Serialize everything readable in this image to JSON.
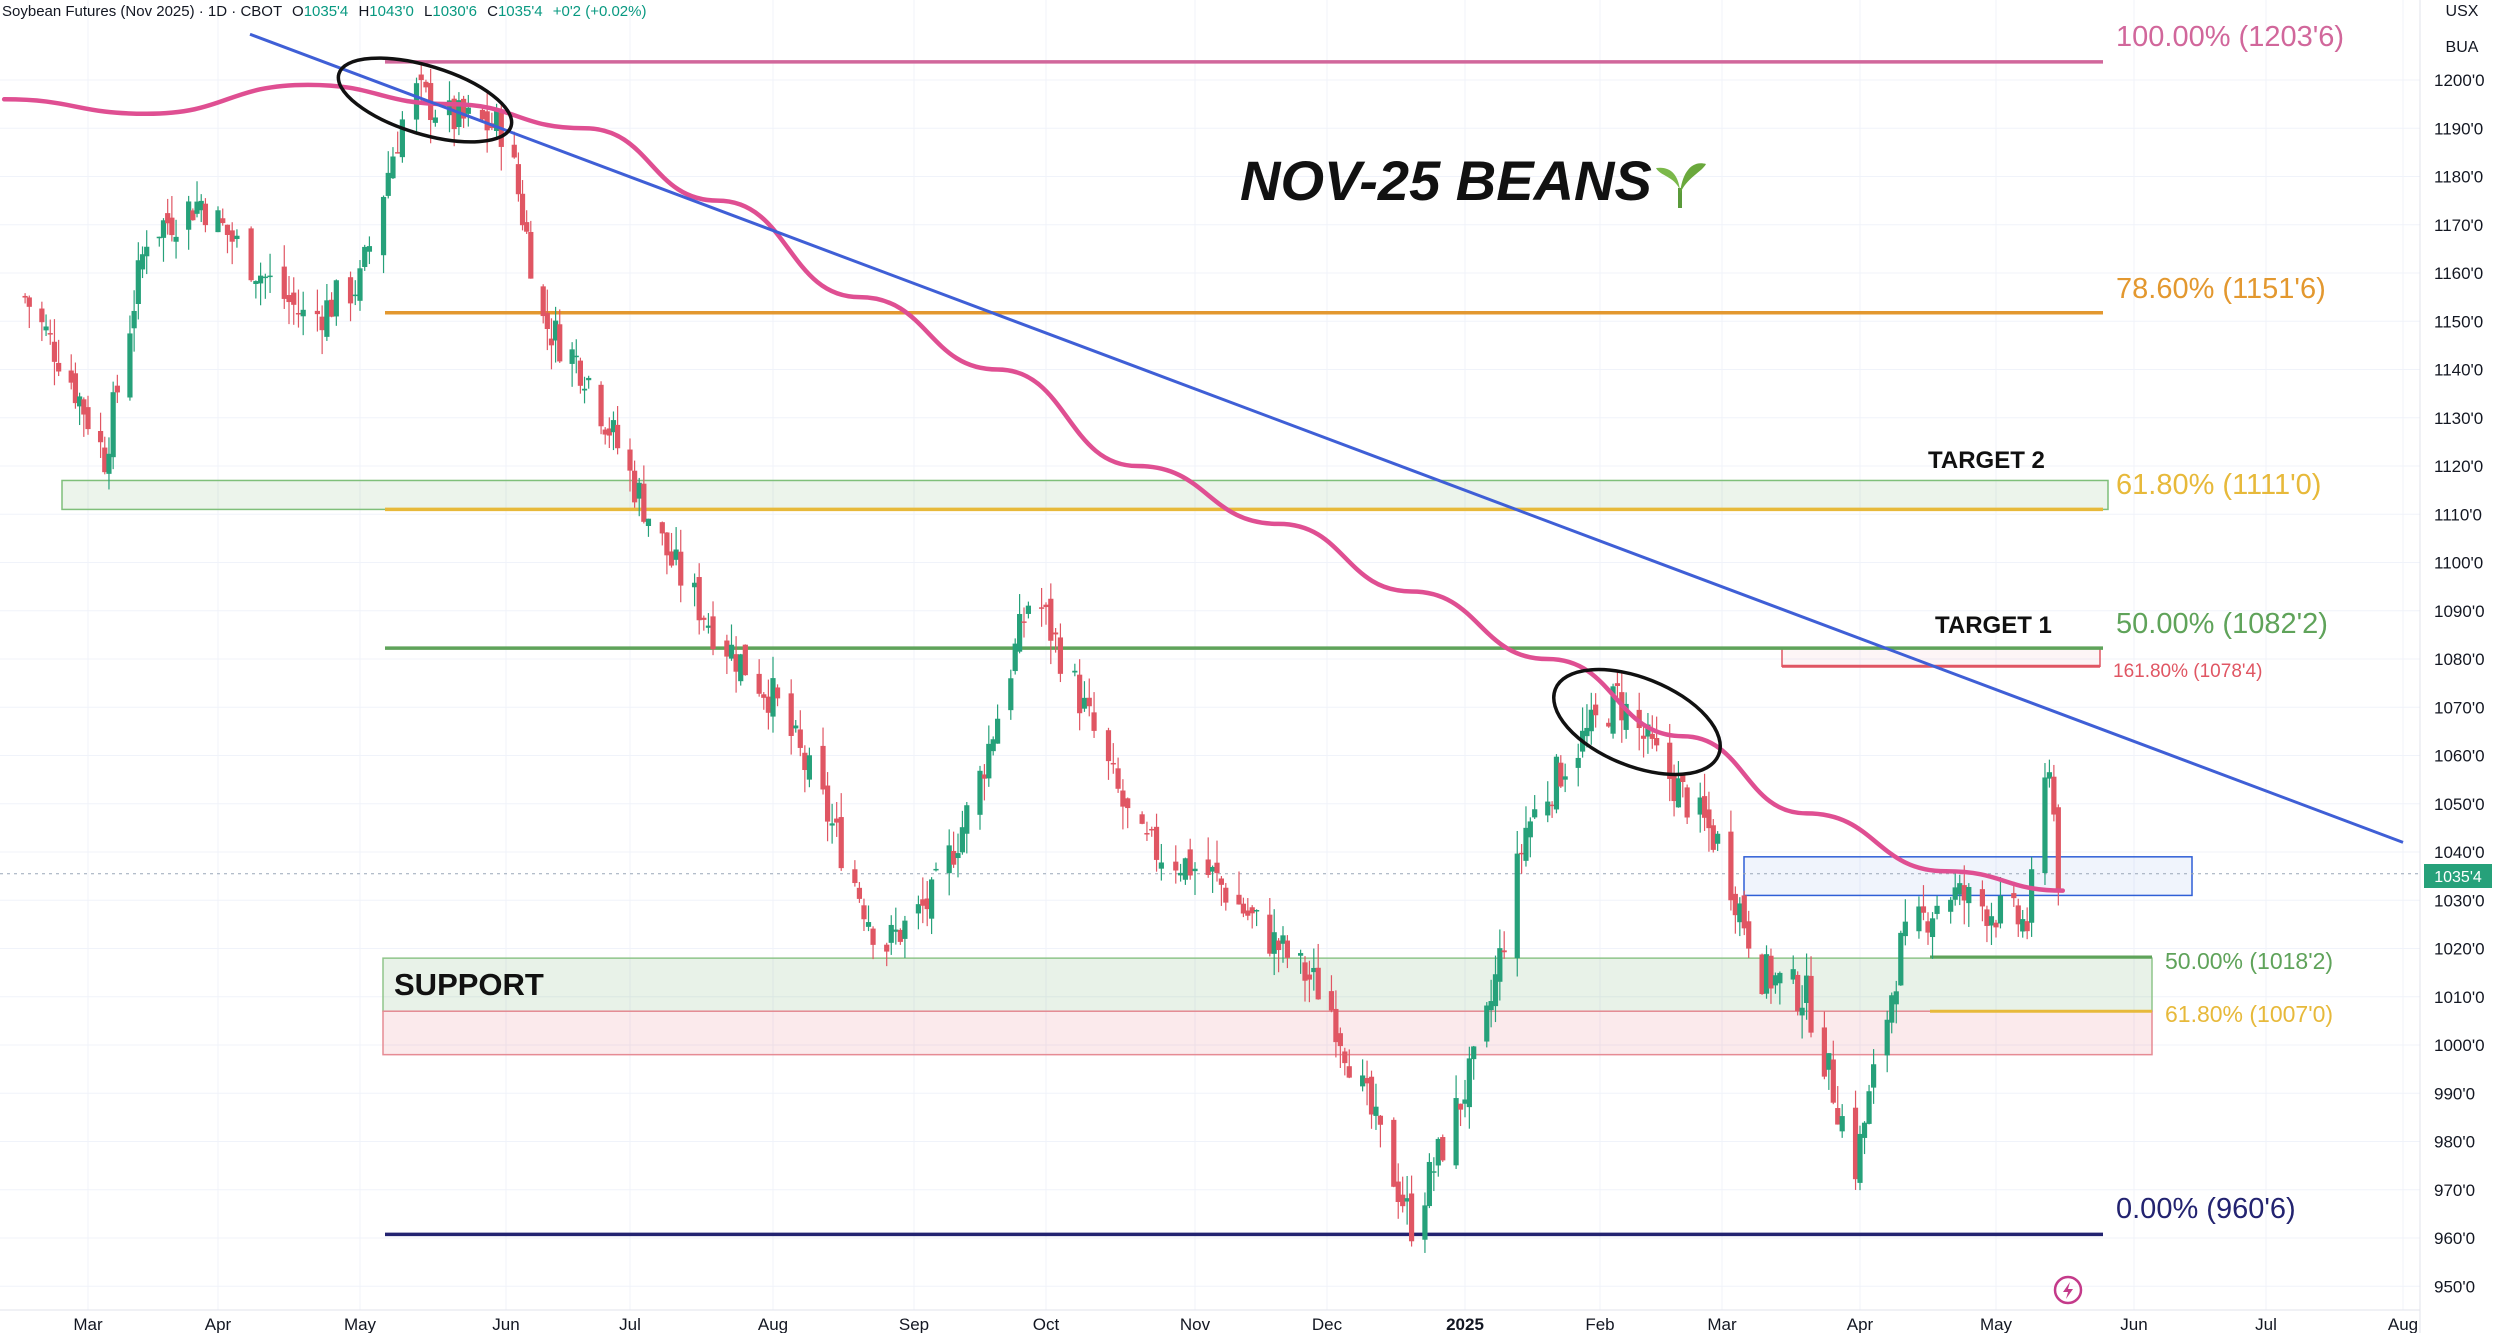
{
  "header": {
    "symbol_text": "Soybean Futures (Nov 2025) · 1D · CBOT",
    "open_label": "O",
    "open_value": "1035'4",
    "high_label": "H",
    "high_value": "1043'0",
    "low_label": "L",
    "low_value": "1030'6",
    "close_label": "C",
    "close_value": "1035'4",
    "change_value": "+0'2 (+0.02%)"
  },
  "price_axis": {
    "unit_line1": "USX",
    "unit_line2": "BUA",
    "last_price_label": "1035'4",
    "ticks": [
      "1200'0",
      "1190'0",
      "1180'0",
      "1170'0",
      "1160'0",
      "1150'0",
      "1140'0",
      "1130'0",
      "1120'0",
      "1110'0",
      "1100'0",
      "1090'0",
      "1080'0",
      "1070'0",
      "1060'0",
      "1050'0",
      "1040'0",
      "1030'0",
      "1020'0",
      "1010'0",
      "1000'0",
      "990'0",
      "980'0",
      "970'0",
      "960'0",
      "950'0"
    ]
  },
  "annotations": {
    "title": "NOV-25 BEANS",
    "title_icon": "seedling-icon",
    "target1": "TARGET 1",
    "target2": "TARGET 2",
    "support": "SUPPORT"
  },
  "fib_levels": {
    "f100": "100.00% (1203'6)",
    "f786": "78.60% (1151'6)",
    "f618": "61.80% (1111'0)",
    "f500": "50.00% (1082'2)",
    "f1618": "161.80% (1078'4)",
    "f000": "0.00% (960'6)",
    "sub500": "50.00% (1018'2)",
    "sub618": "61.80% (1007'0)"
  },
  "colors": {
    "up": "#26a17a",
    "down": "#e05663",
    "ma": "#df4f92",
    "trendline": "#3f5fd6",
    "fib100": "#d1679b",
    "fib786": "#e3982f",
    "fib618": "#e7b93a",
    "fib500": "#5fa35a",
    "fib000": "#232370",
    "target_red": "#e05663",
    "zone_blue": "#2f5fd6"
  },
  "chart_data": {
    "type": "candlestick",
    "title": "NOV-25 BEANS",
    "x_ticks": [
      "Mar",
      "Apr",
      "May",
      "Jun",
      "Jul",
      "Aug",
      "Sep",
      "Oct",
      "Nov",
      "Dec",
      "2025",
      "Feb",
      "Mar",
      "Apr",
      "May",
      "Jun",
      "Jul",
      "Aug"
    ],
    "y_range": [
      945,
      1208
    ],
    "last_price": 1035.5,
    "close_path": [
      [
        "2024-02-15",
        1155
      ],
      [
        "2024-02-25",
        1140
      ],
      [
        "2024-03-05",
        1122
      ],
      [
        "2024-03-15",
        1168
      ],
      [
        "2024-03-28",
        1175
      ],
      [
        "2024-04-10",
        1160
      ],
      [
        "2024-04-20",
        1150
      ],
      [
        "2024-05-01",
        1158
      ],
      [
        "2024-05-08",
        1185
      ],
      [
        "2024-05-12",
        1198
      ],
      [
        "2024-05-20",
        1192
      ],
      [
        "2024-06-01",
        1190
      ],
      [
        "2024-06-10",
        1150
      ],
      [
        "2024-06-20",
        1140
      ],
      [
        "2024-07-01",
        1118
      ],
      [
        "2024-07-10",
        1100
      ],
      [
        "2024-07-20",
        1085
      ],
      [
        "2024-08-01",
        1072
      ],
      [
        "2024-08-12",
        1050
      ],
      [
        "2024-08-25",
        1020
      ],
      [
        "2024-09-05",
        1030
      ],
      [
        "2024-09-15",
        1052
      ],
      [
        "2024-09-28",
        1095
      ],
      [
        "2024-10-08",
        1072
      ],
      [
        "2024-10-20",
        1042
      ],
      [
        "2024-11-05",
        1035
      ],
      [
        "2024-11-15",
        1025
      ],
      [
        "2024-12-01",
        1010
      ],
      [
        "2024-12-20",
        963
      ],
      [
        "2025-01-05",
        1000
      ],
      [
        "2025-01-15",
        1045
      ],
      [
        "2025-01-25",
        1060
      ],
      [
        "2025-02-05",
        1072
      ],
      [
        "2025-02-15",
        1058
      ],
      [
        "2025-02-28",
        1042
      ],
      [
        "2025-03-10",
        1015
      ],
      [
        "2025-03-20",
        1010
      ],
      [
        "2025-03-31",
        975
      ],
      [
        "2025-04-10",
        1020
      ],
      [
        "2025-04-20",
        1032
      ],
      [
        "2025-04-30",
        1028
      ],
      [
        "2025-05-08",
        1025
      ],
      [
        "2025-05-13",
        1060
      ],
      [
        "2025-05-15",
        1035
      ]
    ],
    "moving_average": [
      [
        "2024-02-10",
        1196
      ],
      [
        "2024-03-15",
        1193
      ],
      [
        "2024-04-20",
        1199
      ],
      [
        "2024-05-20",
        1195
      ],
      [
        "2024-06-20",
        1190
      ],
      [
        "2024-07-20",
        1175
      ],
      [
        "2024-08-20",
        1155
      ],
      [
        "2024-09-20",
        1140
      ],
      [
        "2024-10-20",
        1120
      ],
      [
        "2024-11-20",
        1108
      ],
      [
        "2024-12-20",
        1094
      ],
      [
        "2025-01-20",
        1080
      ],
      [
        "2025-02-20",
        1064
      ],
      [
        "2025-03-20",
        1048
      ],
      [
        "2025-04-20",
        1036
      ],
      [
        "2025-05-16",
        1032
      ]
    ],
    "trendline": [
      [
        "2024-05-01",
        1207
      ],
      [
        "2025-08-01",
        1042
      ]
    ],
    "fib_levels": [
      {
        "label": "100.00% (1203'6)",
        "value": 1203.75
      },
      {
        "label": "78.60% (1151'6)",
        "value": 1151.75
      },
      {
        "label": "61.80% (1111'0)",
        "value": 1111
      },
      {
        "label": "50.00% (1082'2)",
        "value": 1082.25
      },
      {
        "label": "161.80% (1078'4)",
        "value": 1078.5
      },
      {
        "label": "0.00% (960'6)",
        "value": 960.75
      }
    ],
    "secondary_fib_levels": [
      {
        "label": "50.00% (1018'2)",
        "value": 1018.25
      },
      {
        "label": "61.80% (1007'0)",
        "value": 1007
      }
    ],
    "zones": [
      {
        "name": "target-2",
        "from": 1111,
        "to": 1117
      },
      {
        "name": "target-1",
        "from": 1078.5,
        "to": 1082.25
      },
      {
        "name": "support-green",
        "from": 1007,
        "to": 1018
      },
      {
        "name": "support-red",
        "from": 998,
        "to": 1007
      },
      {
        "name": "breakout-box",
        "from": 1031,
        "to": 1039
      }
    ]
  }
}
